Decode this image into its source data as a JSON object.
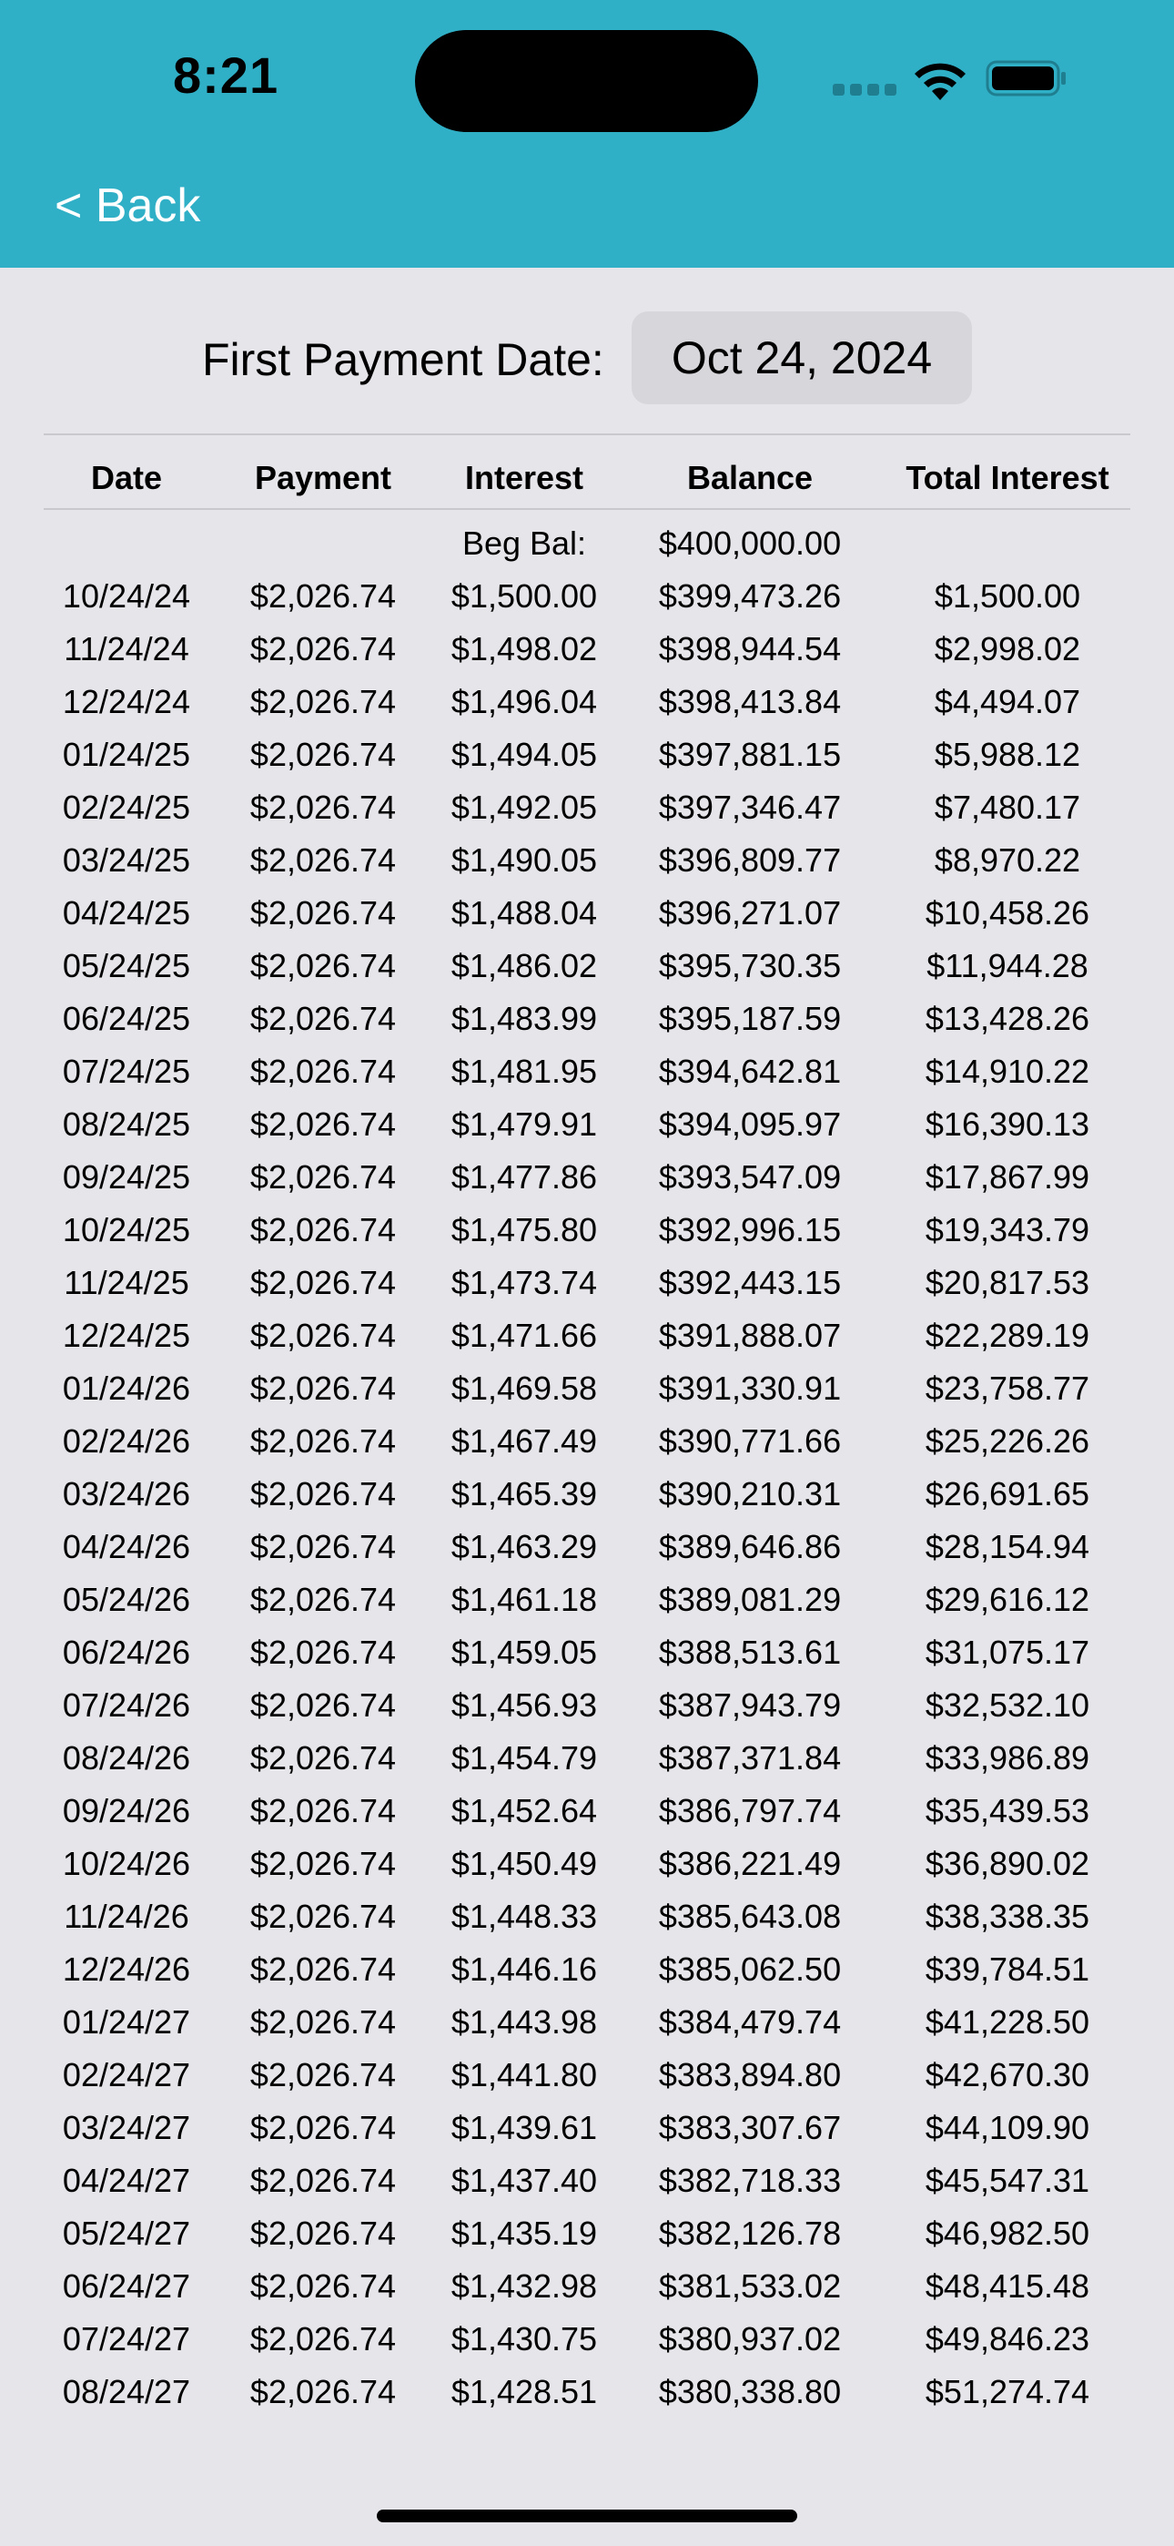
{
  "status_bar": {
    "time": "8:21"
  },
  "nav": {
    "back_label": "< Back"
  },
  "first_payment": {
    "label": "First Payment Date:",
    "value": "Oct 24, 2024"
  },
  "table": {
    "columns": [
      "Date",
      "Payment",
      "Interest",
      "Balance",
      "Total Interest"
    ],
    "beginning": {
      "label": "Beg Bal:",
      "balance": "$400,000.00"
    },
    "rows": [
      [
        "10/24/24",
        "$2,026.74",
        "$1,500.00",
        "$399,473.26",
        "$1,500.00"
      ],
      [
        "11/24/24",
        "$2,026.74",
        "$1,498.02",
        "$398,944.54",
        "$2,998.02"
      ],
      [
        "12/24/24",
        "$2,026.74",
        "$1,496.04",
        "$398,413.84",
        "$4,494.07"
      ],
      [
        "01/24/25",
        "$2,026.74",
        "$1,494.05",
        "$397,881.15",
        "$5,988.12"
      ],
      [
        "02/24/25",
        "$2,026.74",
        "$1,492.05",
        "$397,346.47",
        "$7,480.17"
      ],
      [
        "03/24/25",
        "$2,026.74",
        "$1,490.05",
        "$396,809.77",
        "$8,970.22"
      ],
      [
        "04/24/25",
        "$2,026.74",
        "$1,488.04",
        "$396,271.07",
        "$10,458.26"
      ],
      [
        "05/24/25",
        "$2,026.74",
        "$1,486.02",
        "$395,730.35",
        "$11,944.28"
      ],
      [
        "06/24/25",
        "$2,026.74",
        "$1,483.99",
        "$395,187.59",
        "$13,428.26"
      ],
      [
        "07/24/25",
        "$2,026.74",
        "$1,481.95",
        "$394,642.81",
        "$14,910.22"
      ],
      [
        "08/24/25",
        "$2,026.74",
        "$1,479.91",
        "$394,095.97",
        "$16,390.13"
      ],
      [
        "09/24/25",
        "$2,026.74",
        "$1,477.86",
        "$393,547.09",
        "$17,867.99"
      ],
      [
        "10/24/25",
        "$2,026.74",
        "$1,475.80",
        "$392,996.15",
        "$19,343.79"
      ],
      [
        "11/24/25",
        "$2,026.74",
        "$1,473.74",
        "$392,443.15",
        "$20,817.53"
      ],
      [
        "12/24/25",
        "$2,026.74",
        "$1,471.66",
        "$391,888.07",
        "$22,289.19"
      ],
      [
        "01/24/26",
        "$2,026.74",
        "$1,469.58",
        "$391,330.91",
        "$23,758.77"
      ],
      [
        "02/24/26",
        "$2,026.74",
        "$1,467.49",
        "$390,771.66",
        "$25,226.26"
      ],
      [
        "03/24/26",
        "$2,026.74",
        "$1,465.39",
        "$390,210.31",
        "$26,691.65"
      ],
      [
        "04/24/26",
        "$2,026.74",
        "$1,463.29",
        "$389,646.86",
        "$28,154.94"
      ],
      [
        "05/24/26",
        "$2,026.74",
        "$1,461.18",
        "$389,081.29",
        "$29,616.12"
      ],
      [
        "06/24/26",
        "$2,026.74",
        "$1,459.05",
        "$388,513.61",
        "$31,075.17"
      ],
      [
        "07/24/26",
        "$2,026.74",
        "$1,456.93",
        "$387,943.79",
        "$32,532.10"
      ],
      [
        "08/24/26",
        "$2,026.74",
        "$1,454.79",
        "$387,371.84",
        "$33,986.89"
      ],
      [
        "09/24/26",
        "$2,026.74",
        "$1,452.64",
        "$386,797.74",
        "$35,439.53"
      ],
      [
        "10/24/26",
        "$2,026.74",
        "$1,450.49",
        "$386,221.49",
        "$36,890.02"
      ],
      [
        "11/24/26",
        "$2,026.74",
        "$1,448.33",
        "$385,643.08",
        "$38,338.35"
      ],
      [
        "12/24/26",
        "$2,026.74",
        "$1,446.16",
        "$385,062.50",
        "$39,784.51"
      ],
      [
        "01/24/27",
        "$2,026.74",
        "$1,443.98",
        "$384,479.74",
        "$41,228.50"
      ],
      [
        "02/24/27",
        "$2,026.74",
        "$1,441.80",
        "$383,894.80",
        "$42,670.30"
      ],
      [
        "03/24/27",
        "$2,026.74",
        "$1,439.61",
        "$383,307.67",
        "$44,109.90"
      ],
      [
        "04/24/27",
        "$2,026.74",
        "$1,437.40",
        "$382,718.33",
        "$45,547.31"
      ],
      [
        "05/24/27",
        "$2,026.74",
        "$1,435.19",
        "$382,126.78",
        "$46,982.50"
      ],
      [
        "06/24/27",
        "$2,026.74",
        "$1,432.98",
        "$381,533.02",
        "$48,415.48"
      ],
      [
        "07/24/27",
        "$2,026.74",
        "$1,430.75",
        "$380,937.02",
        "$49,846.23"
      ],
      [
        "08/24/27",
        "$2,026.74",
        "$1,428.51",
        "$380,338.80",
        "$51,274.74"
      ]
    ]
  },
  "colors": {
    "header": "#30b0c7",
    "background": "#e5e5ea",
    "picker": "#d6d6db"
  },
  "icons": [
    "cellular-signal-icon",
    "wifi-icon",
    "battery-icon"
  ]
}
